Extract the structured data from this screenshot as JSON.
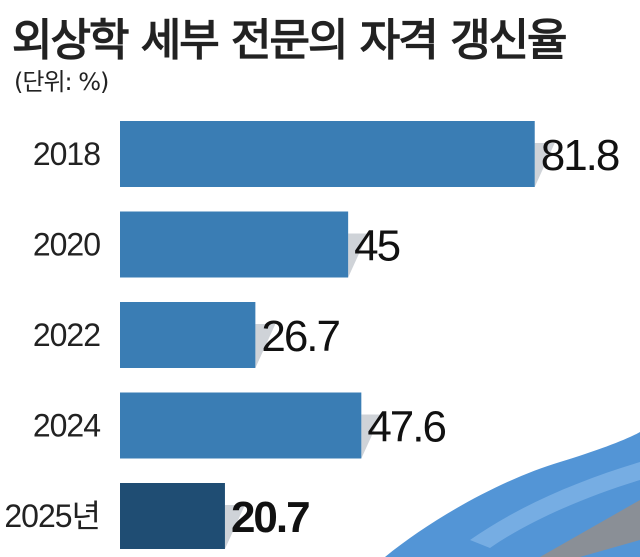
{
  "title": "외상학 세부 전문의 자격 갱신율",
  "unit_note": "(단위: %)",
  "colors": {
    "bar": "#3a7db4",
    "bar_highlight": "#1f4d73",
    "shadow": "#cfd3d8",
    "glove": "#4a8fd4"
  },
  "chart_data": {
    "type": "bar",
    "orientation": "horizontal",
    "title": "외상학 세부 전문의 자격 갱신율",
    "unit": "%",
    "categories": [
      "2018",
      "2020",
      "2022",
      "2024",
      "2025년"
    ],
    "values": [
      81.8,
      45,
      26.7,
      47.6,
      20.7
    ],
    "value_labels": [
      "81.8",
      "45",
      "26.7",
      "47.6",
      "20.7"
    ],
    "highlight_index": 4,
    "grid": false,
    "legend": "none"
  },
  "background_image": "blue-gloved-hand-with-surgical-instrument"
}
